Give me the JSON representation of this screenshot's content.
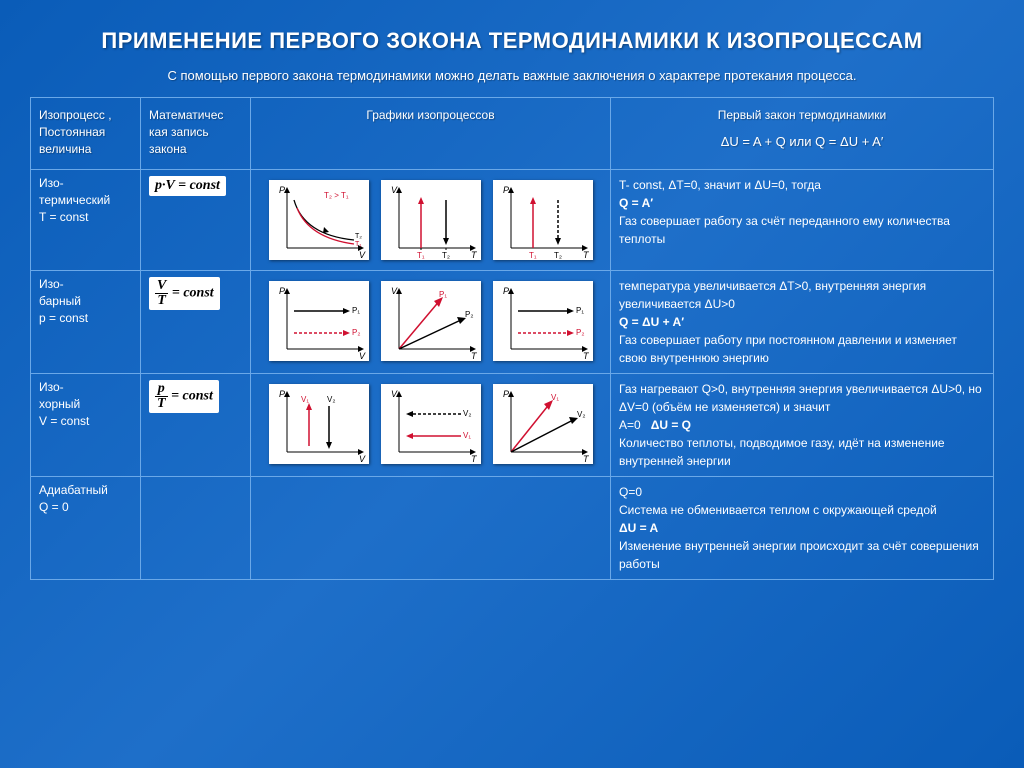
{
  "title": "ПРИМЕНЕНИЕ ПЕРВОГО ЗОКОНА ТЕРМОДИНАМИКИ К ИЗОПРОЦЕССАМ",
  "subtitle": "С помощью первого закона термодинамики можно делать важные заключения о характере протекания процесса.",
  "headers": {
    "process_l1": "Изопроцесс ,",
    "process_l2": "Постоянная",
    "process_l3": "величина",
    "math_l1": "Математичес",
    "math_l2": "кая запись",
    "math_l3": "закона",
    "graphs": "Графики изопроцессов",
    "law_title": "Первый закон термодинамики",
    "law_eq": "ΔU = A + Q   или  Q = ΔU + A′"
  },
  "rows": {
    "iso_t": {
      "name_l1": "Изо-",
      "name_l2": "термический",
      "name_l3": "T = const",
      "formula_html": "p·V = const",
      "law": "T- const, ΔT=0, значит и ΔU=0, тогда<br><b>Q = A′</b><br>Газ совершает работу за счёт переданного ему количества теплоты"
    },
    "iso_p": {
      "name_l1": "Изо-",
      "name_l2": "барный",
      "name_l3": "p = const",
      "law": "температура увеличивается ΔT>0, внутренняя энергия увеличивается ΔU>0<br><b>Q = ΔU + A′</b><br>Газ совершает работу при постоянном давлении и изменяет свою внутреннюю энергию"
    },
    "iso_v": {
      "name_l1": "Изо-",
      "name_l2": "хорный",
      "name_l3": "V = const",
      "law": "Газ нагревают Q>0, внутренняя энергия увеличивается ΔU>0, но ΔV=0 (объём не изменяется) и значит<br>A=0&nbsp;&nbsp;&nbsp;<b>ΔU = Q</b><br>Количество теплоты, подводимое газу, идёт на изменение внутренней энергии"
    },
    "adiab": {
      "name_l1": "Адиабатный",
      "name_l2": "Q = 0",
      "law": "Q=0<br>Система не обменивается теплом с окружающей средой<br><b>ΔU = A</b><br>Изменение внутренней энергии происходит за счёт совершения работы"
    }
  },
  "graph_style": {
    "bg": "#ffffff",
    "axis_color": "#000000",
    "curve_red": "#d01030",
    "curve_black": "#000000",
    "dash": "3,2",
    "label_font": 9
  }
}
